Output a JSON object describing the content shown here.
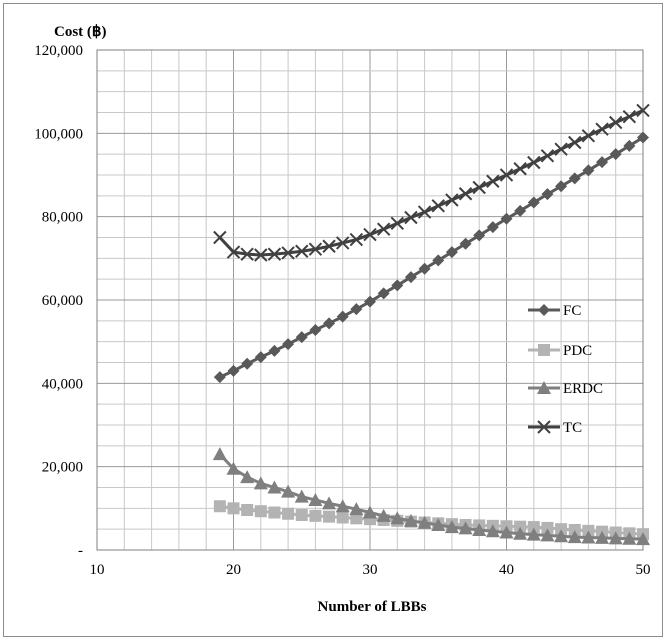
{
  "chart_data": {
    "type": "line",
    "ylabel": "Cost (฿)",
    "xlabel": "Number of LBBs",
    "xlim": [
      10,
      50
    ],
    "ylim": [
      0,
      120000
    ],
    "x_ticks": [
      "10",
      "20",
      "30",
      "40",
      "50"
    ],
    "y_ticks": [
      "-",
      "20,000",
      "40,000",
      "60,000",
      "80,000",
      "100,000",
      "120,000"
    ],
    "grid": true,
    "legend_position": "right",
    "x": [
      19,
      20,
      21,
      22,
      23,
      24,
      25,
      26,
      27,
      28,
      29,
      30,
      31,
      32,
      33,
      34,
      35,
      36,
      37,
      38,
      39,
      40,
      41,
      42,
      43,
      44,
      45,
      46,
      47,
      48,
      49,
      50
    ],
    "series": [
      {
        "name": "FC",
        "marker": "diamond",
        "color": "#595959",
        "values": [
          41500,
          43000,
          44700,
          46300,
          47800,
          49400,
          51100,
          52800,
          54400,
          56000,
          57800,
          59600,
          61600,
          63500,
          65500,
          67500,
          69500,
          71500,
          73500,
          75500,
          77500,
          79500,
          81400,
          83400,
          85400,
          87300,
          89200,
          91100,
          93100,
          95000,
          97000,
          99000
        ]
      },
      {
        "name": "PDC",
        "marker": "square",
        "color": "#b3b3b3",
        "values": [
          10500,
          10000,
          9600,
          9300,
          9000,
          8700,
          8400,
          8200,
          8000,
          7800,
          7600,
          7400,
          7200,
          7000,
          6800,
          6600,
          6400,
          6200,
          6000,
          5900,
          5800,
          5700,
          5600,
          5500,
          5300,
          5000,
          4800,
          4600,
          4400,
          4200,
          4000,
          3800
        ]
      },
      {
        "name": "ERDC",
        "marker": "triangle",
        "color": "#7f7f7f",
        "values": [
          23000,
          19500,
          17500,
          16000,
          15000,
          14000,
          12800,
          12000,
          11200,
          10500,
          9800,
          9000,
          8200,
          7600,
          7000,
          6500,
          6000,
          5500,
          5200,
          4800,
          4500,
          4200,
          3900,
          3700,
          3500,
          3300,
          3100,
          3000,
          2900,
          2800,
          2700,
          2600
        ]
      },
      {
        "name": "TC",
        "marker": "x",
        "color": "#404040",
        "values": [
          75000,
          71500,
          71000,
          70800,
          71000,
          71300,
          71700,
          72200,
          72900,
          73700,
          74500,
          75700,
          77000,
          78400,
          79800,
          81100,
          82600,
          84000,
          85500,
          87000,
          88500,
          90000,
          91500,
          93000,
          94600,
          96200,
          97800,
          99400,
          101000,
          102600,
          104000,
          105500
        ]
      }
    ]
  }
}
